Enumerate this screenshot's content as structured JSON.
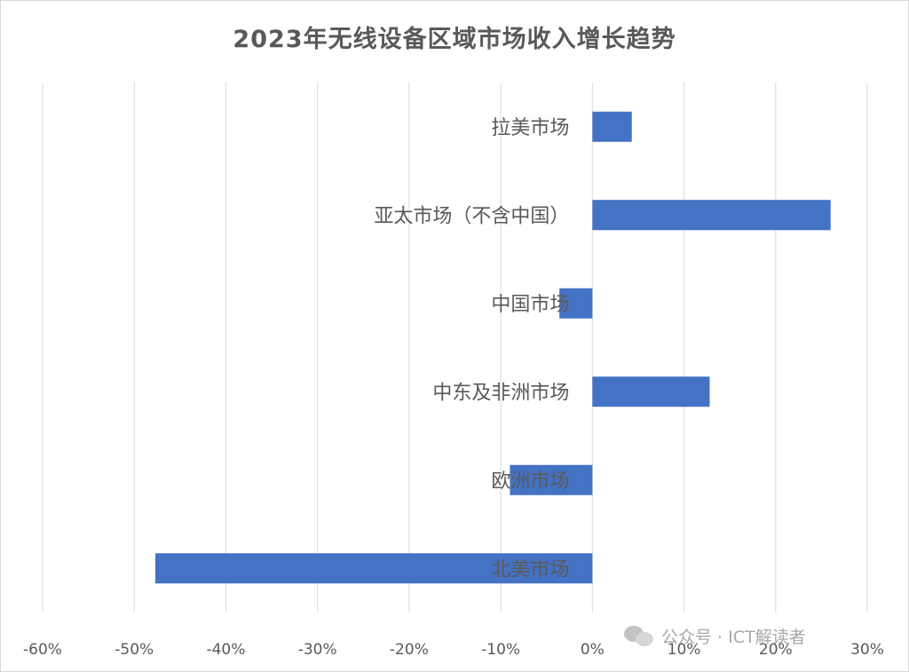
{
  "chart_data": {
    "type": "bar",
    "orientation": "horizontal",
    "title": "2023年无线设备区域市场收入增长趋势",
    "categories": [
      "拉美市场",
      "亚太市场（不含中国）",
      "中国市场",
      "中东及非洲市场",
      "欧洲市场",
      "北美市场"
    ],
    "values": [
      0.043,
      0.26,
      -0.036,
      0.128,
      -0.09,
      -0.477
    ],
    "xlim": [
      -0.6,
      0.3
    ],
    "x_ticks": [
      -0.6,
      -0.5,
      -0.4,
      -0.3,
      -0.2,
      -0.1,
      0,
      0.1,
      0.2,
      0.3
    ],
    "x_tick_labels": [
      "-60%",
      "-50%",
      "-40%",
      "-30%",
      "-20%",
      "-10%",
      "0%",
      "10%",
      "20%",
      "30%"
    ],
    "grid": "vertical",
    "bar_color": "#4472c4",
    "grid_color": "#d9d9d9"
  },
  "watermark": {
    "icon": "wechat-icon",
    "text": "公众号 · ICT解读者"
  }
}
